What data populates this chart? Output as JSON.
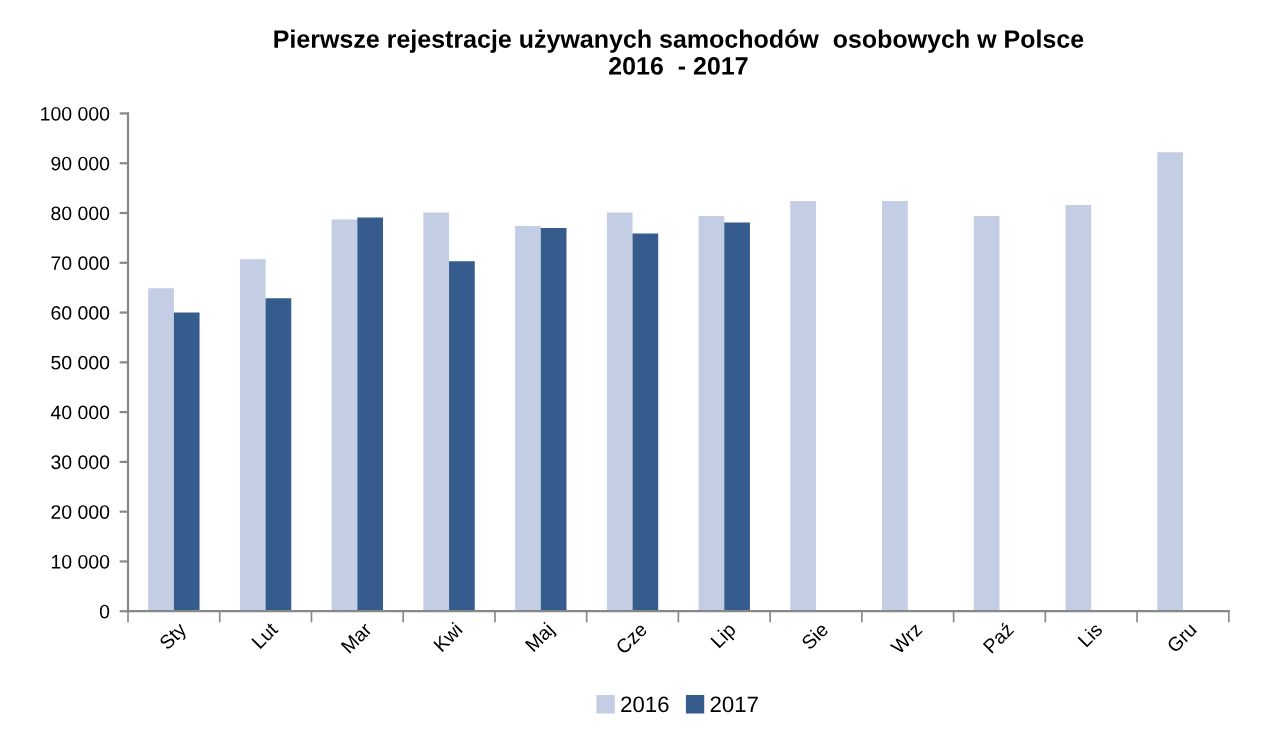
{
  "chart_data": {
    "type": "bar",
    "title": "Pierwsze rejestracje używanych samochodów  osobowych w Polsce\n2016  - 2017",
    "categories": [
      "Sty",
      "Lut",
      "Mar",
      "Kwi",
      "Maj",
      "Cze",
      "Lip",
      "Sie",
      "Wrz",
      "Paź",
      "Lis",
      "Gru"
    ],
    "series": [
      {
        "name": "2016",
        "color": "#c3cde3",
        "values": [
          64900,
          70700,
          78700,
          80100,
          77400,
          80100,
          79400,
          82400,
          82400,
          79400,
          81600,
          92200
        ]
      },
      {
        "name": "2017",
        "color": "#355c8c",
        "values": [
          60000,
          62900,
          79100,
          70300,
          77000,
          75900,
          78100,
          null,
          null,
          null,
          null,
          null
        ]
      }
    ],
    "ylim": [
      0,
      100000
    ],
    "yticks": [
      {
        "value": 0,
        "label": "0"
      },
      {
        "value": 10000,
        "label": "10 000"
      },
      {
        "value": 20000,
        "label": "20 000"
      },
      {
        "value": 30000,
        "label": "30 000"
      },
      {
        "value": 40000,
        "label": "40 000"
      },
      {
        "value": 50000,
        "label": "50 000"
      },
      {
        "value": 60000,
        "label": "60 000"
      },
      {
        "value": 70000,
        "label": "70 000"
      },
      {
        "value": 80000,
        "label": "80 000"
      },
      {
        "value": 90000,
        "label": "90 000"
      },
      {
        "value": 100000,
        "label": "100 000"
      }
    ],
    "grid": false,
    "legend": "bottom"
  }
}
